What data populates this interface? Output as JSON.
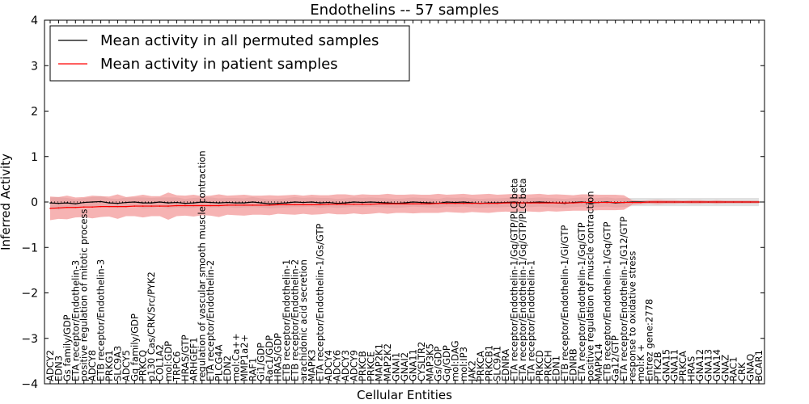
{
  "chart_data": {
    "type": "line",
    "title": "Endothelins -- 57 samples",
    "xlabel": "Cellular Entities",
    "ylabel": "Inferred Activity",
    "ylim": [
      -4,
      4
    ],
    "yticks": [
      4,
      3,
      2,
      1,
      0,
      -1,
      -2,
      -3,
      -4
    ],
    "ytick_labels": [
      "4",
      "3",
      "2",
      "1",
      "0",
      "−1",
      "−2",
      "−3",
      "−4"
    ],
    "grid": false,
    "legend_position": "top-left",
    "categories": [
      "ADCY2",
      "EDN3",
      "Gs family/GDP",
      "ETA receptor/Endothelin-3",
      "positive regulation of mitotic process",
      "ADCY8",
      "ETB receptor/Endothelin-3",
      "PRKG1",
      "SLC9A3",
      "ADCY5",
      "Gq family/GDP",
      "PRKCQ",
      "p130 Cas/CRK/Src/PYK2",
      "COL1A2",
      "mol:GDP",
      "TRPC6",
      "HRAS/GTP",
      "ARHGEF1",
      "regulation of vascular smooth muscle contraction",
      "ETA receptor/Endothelin-2",
      "PLCG4A",
      "EDN2",
      "mol:Ca++",
      "MMP1a2+",
      "RAF1",
      "Gi1/GDP",
      "Rac1/GDP",
      "HRAS/GDP",
      "ETB receptor/Endothelin-1",
      "ETB receptor/Endothelin-2",
      "arachidonic acid secretion",
      "MAPK3",
      "ETA receptor/Endothelin-1/Gs/GTP",
      "ADCY4",
      "ADCY6",
      "ADCY3",
      "ADCY9",
      "PRKCB",
      "PRKCE",
      "MAP2K1",
      "MAP2K2",
      "GNAI1",
      "GNAI2",
      "GNA11",
      "CYSLTR2",
      "MAP3K5",
      "Gs/GDP",
      "Gq/GDP",
      "mol:DAG",
      "mol:IP3",
      "JAK2",
      "PRKCA",
      "PRKCB1",
      "SLC9A1",
      "EDNRA",
      "ETA receptor/Endothelin-1/Gq/GTP/PLC beta",
      "ETA receptor/Endothelin-1/Gq/GTP/PLC beta",
      "ETA receptor/Endothelin-1",
      "PRKCD",
      "PRKCH",
      "EDN1",
      "ETB receptor/Endothelin-1/Gi/GTP",
      "EDNRB",
      "ETA receptor/Endothelin-1/Gq/GTP",
      "positive regulation of muscle contraction",
      "MAPK14",
      "ETB receptor/Endothelin-1/Gq/GTP",
      "Ga12/GTP",
      "ETA receptor/Endothelin-1/G12/GTP",
      "response to oxidative stress",
      "mol:K +",
      "Entrez gene:2778",
      "PTK2B",
      "GNA15",
      "GNA11",
      "PRKCA",
      "HRAS",
      "GNA12",
      "GNA13",
      "GNA14",
      "GNAZ",
      "RAC1",
      "CRK",
      "GNAQ",
      "BCAR1"
    ],
    "series": [
      {
        "name": "Mean activity in all permuted samples",
        "color": "#000000",
        "band_color": "#c8c8c8",
        "values": [
          -0.02,
          -0.03,
          -0.02,
          -0.04,
          -0.01,
          0.0,
          0.01,
          -0.02,
          -0.03,
          -0.01,
          0.0,
          -0.02,
          -0.02,
          0.0,
          -0.02,
          -0.01,
          -0.03,
          -0.02,
          0.0,
          -0.01,
          -0.02,
          -0.01,
          -0.02,
          -0.02,
          0.0,
          -0.02,
          -0.04,
          -0.03,
          -0.02,
          0.0,
          -0.01,
          0.0,
          -0.02,
          -0.01,
          -0.03,
          -0.02,
          0.0,
          -0.01,
          0.0,
          -0.01,
          -0.02,
          -0.03,
          -0.02,
          0.0,
          -0.01,
          -0.02,
          -0.03,
          0.0,
          -0.01,
          0.0,
          -0.02,
          -0.03,
          -0.02,
          -0.02,
          -0.01,
          0.0,
          -0.02,
          -0.01,
          0.0,
          -0.01,
          -0.02,
          -0.03,
          -0.01,
          0.0,
          -0.02,
          -0.01,
          0.0,
          -0.02,
          -0.01,
          0.0,
          0.0,
          0.0,
          0.0,
          0.0,
          0.0,
          0.0,
          0.0,
          0.0,
          0.0,
          0.0,
          0.0,
          0.0,
          0.0,
          0.0,
          0.0
        ],
        "band": [
          0.12,
          0.14,
          0.11,
          0.1,
          0.1,
          0.11,
          0.12,
          0.1,
          0.1,
          0.11,
          0.1,
          0.12,
          0.11,
          0.1,
          0.12,
          0.11,
          0.1,
          0.11,
          0.1,
          0.11,
          0.1,
          0.1,
          0.11,
          0.1,
          0.11,
          0.1,
          0.1,
          0.1,
          0.1,
          0.11,
          0.1,
          0.1,
          0.11,
          0.1,
          0.1,
          0.1,
          0.1,
          0.1,
          0.1,
          0.1,
          0.1,
          0.1,
          0.1,
          0.1,
          0.1,
          0.1,
          0.1,
          0.1,
          0.1,
          0.1,
          0.1,
          0.1,
          0.1,
          0.1,
          0.1,
          0.1,
          0.1,
          0.1,
          0.1,
          0.1,
          0.1,
          0.1,
          0.1,
          0.1,
          0.1,
          0.1,
          0.1,
          0.1,
          0.1,
          0.09,
          0.09,
          0.09,
          0.09,
          0.09,
          0.09,
          0.09,
          0.09,
          0.09,
          0.09,
          0.09,
          0.09,
          0.09,
          0.09,
          0.09,
          0.09
        ]
      },
      {
        "name": "Mean activity in patient samples",
        "color": "#ff0000",
        "band_color": "#f08080",
        "values": [
          -0.14,
          -0.13,
          -0.12,
          -0.12,
          -0.11,
          -0.11,
          -0.1,
          -0.1,
          -0.1,
          -0.1,
          -0.09,
          -0.09,
          -0.09,
          -0.09,
          -0.09,
          -0.08,
          -0.08,
          -0.08,
          -0.08,
          -0.08,
          -0.08,
          -0.07,
          -0.07,
          -0.07,
          -0.07,
          -0.07,
          -0.07,
          -0.06,
          -0.06,
          -0.06,
          -0.06,
          -0.06,
          -0.06,
          -0.05,
          -0.05,
          -0.05,
          -0.05,
          -0.05,
          -0.05,
          -0.04,
          -0.04,
          -0.04,
          -0.04,
          -0.04,
          -0.04,
          -0.04,
          -0.03,
          -0.03,
          -0.03,
          -0.03,
          -0.03,
          -0.03,
          -0.03,
          -0.03,
          -0.02,
          -0.02,
          -0.02,
          -0.02,
          -0.02,
          -0.02,
          -0.02,
          -0.02,
          -0.02,
          -0.01,
          -0.01,
          -0.01,
          -0.01,
          -0.01,
          -0.01,
          -0.01,
          -0.01,
          0.0,
          0.0,
          0.0,
          0.0,
          0.0,
          0.0,
          0.0,
          0.0,
          0.0,
          0.0,
          0.0,
          0.0,
          0.0,
          0.0
        ],
        "band": [
          0.26,
          0.24,
          0.26,
          0.22,
          0.22,
          0.25,
          0.23,
          0.22,
          0.27,
          0.21,
          0.22,
          0.25,
          0.22,
          0.22,
          0.3,
          0.23,
          0.22,
          0.24,
          0.21,
          0.22,
          0.25,
          0.21,
          0.22,
          0.23,
          0.21,
          0.21,
          0.22,
          0.2,
          0.21,
          0.22,
          0.2,
          0.22,
          0.21,
          0.2,
          0.22,
          0.22,
          0.2,
          0.22,
          0.21,
          0.2,
          0.22,
          0.2,
          0.2,
          0.21,
          0.2,
          0.2,
          0.21,
          0.19,
          0.2,
          0.21,
          0.19,
          0.2,
          0.21,
          0.19,
          0.19,
          0.2,
          0.18,
          0.19,
          0.2,
          0.18,
          0.19,
          0.18,
          0.17,
          0.18,
          0.18,
          0.17,
          0.17,
          0.17,
          0.16,
          0.05,
          0.04,
          0.04,
          0.05,
          0.04,
          0.04,
          0.03,
          0.04,
          0.04,
          0.03,
          0.04,
          0.03,
          0.03,
          0.03,
          0.03,
          0.03
        ]
      }
    ]
  }
}
